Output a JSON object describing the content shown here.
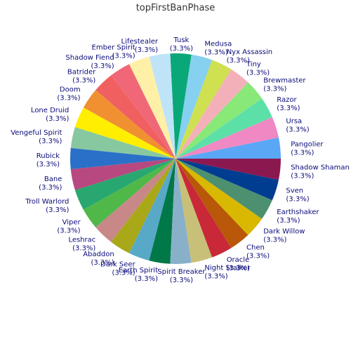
{
  "chart_data": {
    "type": "pie",
    "title": "topFirstBanPhase",
    "start_angle": "right, counter-clockwise",
    "slices": [
      {
        "label": "Pangolier",
        "value": 3.3,
        "pct_label": "(3.3%)",
        "color": "#5aa7f5"
      },
      {
        "label": "Ursa",
        "value": 3.3,
        "pct_label": "(3.3%)",
        "color": "#f088c4"
      },
      {
        "label": "Razor",
        "value": 3.3,
        "pct_label": "(3.3%)",
        "color": "#5de0a8"
      },
      {
        "label": "Brewmaster",
        "value": 3.3,
        "pct_label": "(3.3%)",
        "color": "#88e878"
      },
      {
        "label": "Tiny",
        "value": 3.3,
        "pct_label": "(3.3%)",
        "color": "#f4b0b8"
      },
      {
        "label": "Nyx Assassin",
        "value": 3.3,
        "pct_label": "(3.3%)",
        "color": "#cfe050"
      },
      {
        "label": "Medusa",
        "value": 3.3,
        "pct_label": "(3.3%)",
        "color": "#86d0f0"
      },
      {
        "label": "Tusk",
        "value": 3.3,
        "pct_label": "(3.3%)",
        "color": "#0aa878"
      },
      {
        "label": "Lifestealer",
        "value": 3.3,
        "pct_label": "(3.3%)",
        "color": "#bfe4f8"
      },
      {
        "label": "Ember Spirit",
        "value": 3.3,
        "pct_label": "(3.3%)",
        "color": "#fff0a8"
      },
      {
        "label": "Shadow Fiend",
        "value": 3.3,
        "pct_label": "(3.3%)",
        "color": "#f06878"
      },
      {
        "label": "Batrider",
        "value": 3.3,
        "pct_label": "(3.3%)",
        "color": "#f06060"
      },
      {
        "label": "Doom",
        "value": 3.3,
        "pct_label": "(3.3%)",
        "color": "#f09030"
      },
      {
        "label": "Lone Druid",
        "value": 3.3,
        "pct_label": "(3.3%)",
        "color": "#ffee00"
      },
      {
        "label": "Vengeful Spirit",
        "value": 3.3,
        "pct_label": "(3.3%)",
        "color": "#88c8a0"
      },
      {
        "label": "Rubick",
        "value": 3.3,
        "pct_label": "(3.3%)",
        "color": "#2a70c8"
      },
      {
        "label": "Bane",
        "value": 3.3,
        "pct_label": "(3.3%)",
        "color": "#b84880"
      },
      {
        "label": "Troll Warlord",
        "value": 3.3,
        "pct_label": "(3.3%)",
        "color": "#28a870"
      },
      {
        "label": "Viper",
        "value": 3.3,
        "pct_label": "(3.3%)",
        "color": "#50b848"
      },
      {
        "label": "Leshrac",
        "value": 3.3,
        "pct_label": "(3.3%)",
        "color": "#c88888"
      },
      {
        "label": "Abaddon",
        "value": 3.3,
        "pct_label": "(3.3%)",
        "color": "#a8a818"
      },
      {
        "label": "Dark Seer",
        "value": 3.3,
        "pct_label": "(3.3%)",
        "color": "#58a8c8"
      },
      {
        "label": "Earth Spirit",
        "value": 3.3,
        "pct_label": "(3.3%)",
        "color": "#007848"
      },
      {
        "label": "Spirit Breaker",
        "value": 3.3,
        "pct_label": "(3.3%)",
        "color": "#88b0c8"
      },
      {
        "label": "Night Stalker",
        "value": 3.3,
        "pct_label": "(3.3%)",
        "color": "#c8c078"
      },
      {
        "label": "Oracle",
        "value": 3.3,
        "pct_label": "(3.3%)",
        "color": "#c82838"
      },
      {
        "label": "Chen",
        "value": 3.3,
        "pct_label": "(3.3%)",
        "color": "#b85808"
      },
      {
        "label": "Dark Willow",
        "value": 3.3,
        "pct_label": "(3.3%)",
        "color": "#d8b800"
      },
      {
        "label": "Earthshaker",
        "value": 3.3,
        "pct_label": "(3.3%)",
        "color": "#4c9070"
      },
      {
        "label": "Sven",
        "value": 3.3,
        "pct_label": "(3.3%)",
        "color": "#003c90"
      },
      {
        "label": "Shadow Shaman",
        "value": 3.3,
        "pct_label": "(3.3%)",
        "color": "#8c1850"
      }
    ]
  }
}
